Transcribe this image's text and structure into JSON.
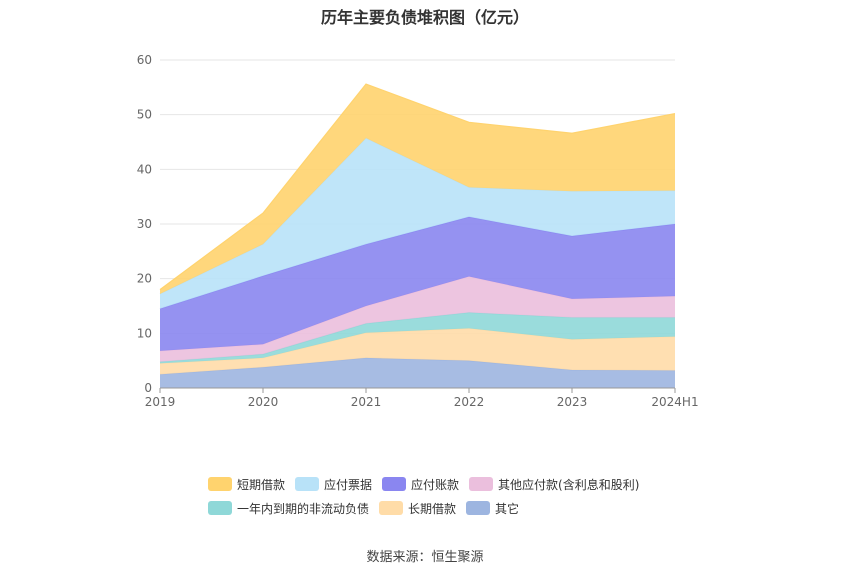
{
  "chart_data": {
    "type": "area",
    "stacked": true,
    "title": "历年主要负债堆积图（亿元）",
    "categories": [
      "2019",
      "2020",
      "2021",
      "2022",
      "2023",
      "2024H1"
    ],
    "ylim": [
      0,
      60
    ],
    "yticks": [
      0,
      10,
      20,
      30,
      40,
      50,
      60
    ],
    "grid": true,
    "legend_position": "bottom",
    "series": [
      {
        "name": "其它",
        "color": "#9db5e0",
        "values": [
          2.5,
          3.8,
          5.5,
          5.0,
          3.3,
          3.2
        ]
      },
      {
        "name": "长期借款",
        "color": "#ffdca8",
        "values": [
          2.0,
          1.7,
          4.6,
          5.9,
          5.6,
          6.2
        ]
      },
      {
        "name": "一年内到期的非流动负债",
        "color": "#8fd8d8",
        "values": [
          0.3,
          0.7,
          1.7,
          2.9,
          4.0,
          3.5
        ]
      },
      {
        "name": "其他应付款(含利息和股利)",
        "color": "#ebbfdd",
        "values": [
          2.0,
          1.8,
          3.2,
          6.6,
          3.4,
          3.9
        ]
      },
      {
        "name": "应付账款",
        "color": "#8a86f0",
        "values": [
          7.7,
          12.5,
          11.3,
          10.9,
          11.5,
          13.2
        ]
      },
      {
        "name": "应付票据",
        "color": "#b8e2f8",
        "values": [
          2.7,
          5.8,
          19.4,
          5.4,
          8.2,
          6.1
        ]
      },
      {
        "name": "短期借款",
        "color": "#ffd36e",
        "values": [
          0.8,
          5.7,
          9.9,
          11.9,
          10.6,
          14.1
        ]
      }
    ],
    "legend_order": [
      "短期借款",
      "应付票据",
      "应付账款",
      "其他应付款(含利息和股利)",
      "一年内到期的非流动负债",
      "长期借款",
      "其它"
    ]
  },
  "source_text": "数据来源：恒生聚源"
}
